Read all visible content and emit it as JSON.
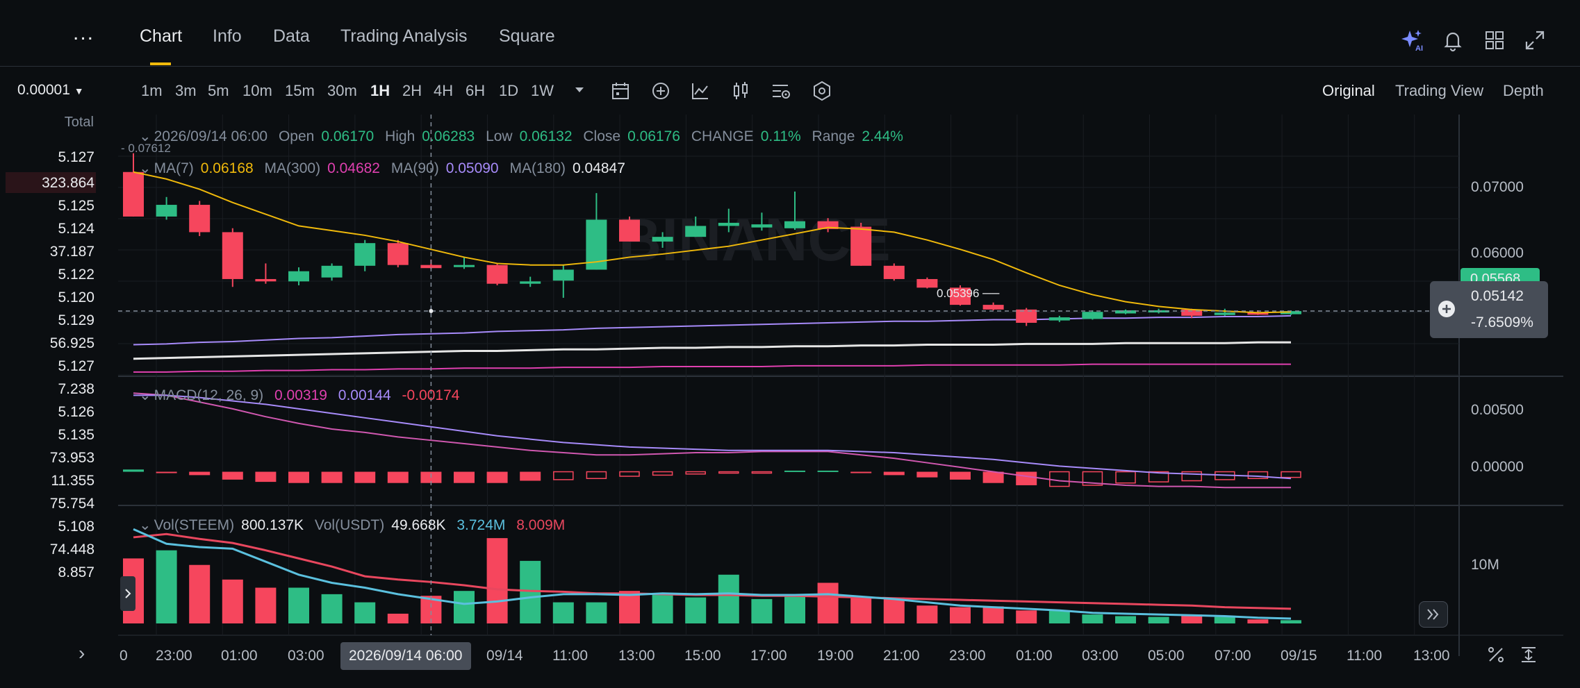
{
  "top_tabs": [
    {
      "label": "Chart",
      "active": true
    },
    {
      "label": "Info",
      "active": false
    },
    {
      "label": "Data",
      "active": false
    },
    {
      "label": "Trading Analysis",
      "active": false
    },
    {
      "label": "Square",
      "active": false
    }
  ],
  "more_label": "...",
  "top_icons": [
    "ai-sparkle-icon",
    "bell-icon",
    "layout-grid-icon",
    "expand-icon"
  ],
  "ai_badge": "AI",
  "intervals": [
    "1m",
    "3m",
    "5m",
    "10m",
    "15m",
    "30m",
    "1H",
    "2H",
    "4H",
    "6H",
    "1D",
    "1W"
  ],
  "active_interval": "1H",
  "toolbar_icons": [
    "calendar-icon",
    "add-indicator-icon",
    "indicator-chart-icon",
    "candle-type-icon",
    "settings-icon",
    "hexagon-icon"
  ],
  "view_options": [
    {
      "label": "Original",
      "active": true
    },
    {
      "label": "Trading View",
      "active": false
    },
    {
      "label": "Depth",
      "active": false
    }
  ],
  "left_panel": {
    "price_select": "0.00001",
    "total_label": "Total",
    "rows": [
      "5.127",
      "323.864",
      "5.125",
      "5.124",
      "37.187",
      "5.122",
      "5.120",
      "5.129",
      "56.925",
      "5.127",
      "7.238",
      "5.126",
      "5.135",
      "73.953",
      "11.355",
      "75.754",
      "5.108",
      "74.448",
      "8.857"
    ],
    "expand_arrow": "›"
  },
  "ohlc_legend": {
    "date": "2026/09/14 06:00",
    "open_label": "Open",
    "open": "0.06170",
    "high_label": "High",
    "high": "0.06283",
    "low_label": "Low",
    "low": "0.06132",
    "close_label": "Close",
    "close": "0.06176",
    "change_label": "CHANGE",
    "change": "0.11%",
    "range_label": "Range",
    "range": "2.44%"
  },
  "ma_legend": {
    "ma7_label": "MA(7)",
    "ma7": "0.06168",
    "ma300_label": "MA(300)",
    "ma300": "0.04682",
    "ma90_label": "MA(90)",
    "ma90": "0.05090",
    "ma180_label": "MA(180)",
    "ma180": "0.04847"
  },
  "macd_legend": {
    "label": "MACD(12, 26, 9)",
    "v1": "0.00319",
    "v2": "0.00144",
    "v3": "-0.00174"
  },
  "vol_legend": {
    "label1": "Vol(STEEM)",
    "v1": "800.137K",
    "label2": "Vol(USDT)",
    "v2": "49.668K",
    "v3": "3.724M",
    "v4": "8.009M"
  },
  "high_marker": "0.07612",
  "low_marker": "0.05396",
  "price_axis": [
    "0.07000",
    "0.06000"
  ],
  "macd_axis": [
    "0.00500",
    "0.00000"
  ],
  "vol_axis": [
    "10M"
  ],
  "current_price_tag": "0.05568",
  "tooltip": {
    "price": "0.05142",
    "change": "-7.6509%"
  },
  "crosshair_date": "2026/09/14 06:00",
  "time_axis": [
    "0",
    "23:00",
    "01:00",
    "03:00",
    "09/14",
    "11:00",
    "13:00",
    "15:00",
    "17:00",
    "19:00",
    "21:00",
    "23:00",
    "01:00",
    "03:00",
    "05:00",
    "07:00",
    "09/15",
    "11:00",
    "13:00"
  ],
  "watermark": "BINANCE",
  "colors": {
    "up": "#2ebd85",
    "down": "#f6465d",
    "ma7": "#f0b90b",
    "ma300": "#e040b0",
    "ma90": "#a78bfa",
    "ma180": "#e6e6e6",
    "macd": "#d058b0",
    "signal": "#a78bfa",
    "vol_ma1": "#e8475e",
    "vol_ma2": "#5bc0de"
  },
  "chart_data": {
    "type": "candlestick",
    "candles": [
      {
        "o": 0.0737,
        "h": 0.0761,
        "l": 0.068,
        "c": 0.068
      },
      {
        "o": 0.068,
        "h": 0.0705,
        "l": 0.0676,
        "c": 0.0695
      },
      {
        "o": 0.0695,
        "h": 0.07,
        "l": 0.0655,
        "c": 0.066
      },
      {
        "o": 0.066,
        "h": 0.0665,
        "l": 0.059,
        "c": 0.06
      },
      {
        "o": 0.06,
        "h": 0.062,
        "l": 0.0594,
        "c": 0.0597
      },
      {
        "o": 0.0597,
        "h": 0.0615,
        "l": 0.0592,
        "c": 0.061
      },
      {
        "o": 0.0602,
        "h": 0.062,
        "l": 0.0598,
        "c": 0.0617
      },
      {
        "o": 0.0617,
        "h": 0.065,
        "l": 0.061,
        "c": 0.0646
      },
      {
        "o": 0.0646,
        "h": 0.065,
        "l": 0.0615,
        "c": 0.0618
      },
      {
        "o": 0.0618,
        "h": 0.0625,
        "l": 0.0613,
        "c": 0.0614
      },
      {
        "o": 0.0617,
        "h": 0.0628,
        "l": 0.0613,
        "c": 0.0618
      },
      {
        "o": 0.0618,
        "h": 0.062,
        "l": 0.0592,
        "c": 0.0594
      },
      {
        "o": 0.0594,
        "h": 0.0603,
        "l": 0.059,
        "c": 0.0597
      },
      {
        "o": 0.0598,
        "h": 0.0618,
        "l": 0.0576,
        "c": 0.0612
      },
      {
        "o": 0.0612,
        "h": 0.071,
        "l": 0.0612,
        "c": 0.0676
      },
      {
        "o": 0.0676,
        "h": 0.068,
        "l": 0.0648,
        "c": 0.0648
      },
      {
        "o": 0.0648,
        "h": 0.066,
        "l": 0.064,
        "c": 0.0654
      },
      {
        "o": 0.0654,
        "h": 0.068,
        "l": 0.0654,
        "c": 0.0668
      },
      {
        "o": 0.0668,
        "h": 0.069,
        "l": 0.066,
        "c": 0.0672
      },
      {
        "o": 0.0666,
        "h": 0.0685,
        "l": 0.0662,
        "c": 0.067
      },
      {
        "o": 0.0665,
        "h": 0.0712,
        "l": 0.0663,
        "c": 0.0674
      },
      {
        "o": 0.0674,
        "h": 0.0678,
        "l": 0.066,
        "c": 0.0664
      },
      {
        "o": 0.0667,
        "h": 0.0672,
        "l": 0.0617,
        "c": 0.0617
      },
      {
        "o": 0.0617,
        "h": 0.062,
        "l": 0.0598,
        "c": 0.06
      },
      {
        "o": 0.06,
        "h": 0.0602,
        "l": 0.0588,
        "c": 0.0589
      },
      {
        "o": 0.0589,
        "h": 0.0592,
        "l": 0.0566,
        "c": 0.0567
      },
      {
        "o": 0.0567,
        "h": 0.057,
        "l": 0.056,
        "c": 0.0561
      },
      {
        "o": 0.0561,
        "h": 0.0563,
        "l": 0.054,
        "c": 0.0544
      },
      {
        "o": 0.0547,
        "h": 0.0553,
        "l": 0.0545,
        "c": 0.0551
      },
      {
        "o": 0.0549,
        "h": 0.056,
        "l": 0.0548,
        "c": 0.0558
      },
      {
        "o": 0.0556,
        "h": 0.0561,
        "l": 0.0555,
        "c": 0.056
      },
      {
        "o": 0.0558,
        "h": 0.0562,
        "l": 0.0556,
        "c": 0.056
      },
      {
        "o": 0.0561,
        "h": 0.0562,
        "l": 0.055,
        "c": 0.0553
      },
      {
        "o": 0.0554,
        "h": 0.0562,
        "l": 0.0553,
        "c": 0.0557
      },
      {
        "o": 0.0557,
        "h": 0.056,
        "l": 0.0554,
        "c": 0.0555
      },
      {
        "o": 0.0555,
        "h": 0.056,
        "l": 0.0554,
        "c": 0.0559
      }
    ],
    "ma7": [
      0.0737,
      0.0728,
      0.0715,
      0.0698,
      0.0683,
      0.0668,
      0.0662,
      0.0656,
      0.0648,
      0.0638,
      0.0628,
      0.062,
      0.0618,
      0.0618,
      0.0622,
      0.0628,
      0.0632,
      0.0637,
      0.0642,
      0.065,
      0.0658,
      0.0666,
      0.0664,
      0.066,
      0.065,
      0.0638,
      0.0625,
      0.0608,
      0.0592,
      0.058,
      0.0571,
      0.0565,
      0.0561,
      0.0559,
      0.0557,
      0.0558
    ],
    "ma90": [
      0.0516,
      0.0517,
      0.0519,
      0.052,
      0.0522,
      0.0524,
      0.0525,
      0.0527,
      0.0529,
      0.053,
      0.0531,
      0.0533,
      0.0534,
      0.0535,
      0.0537,
      0.0538,
      0.0539,
      0.054,
      0.0541,
      0.0542,
      0.0543,
      0.0544,
      0.0545,
      0.0546,
      0.0546,
      0.0547,
      0.0548,
      0.0548,
      0.0549,
      0.055,
      0.055,
      0.0551,
      0.0551,
      0.0552,
      0.0552,
      0.0553
    ],
    "ma180": [
      0.0498,
      0.0499,
      0.05,
      0.0501,
      0.0502,
      0.0503,
      0.0504,
      0.0505,
      0.0506,
      0.0507,
      0.0508,
      0.0508,
      0.0509,
      0.051,
      0.051,
      0.0511,
      0.0512,
      0.0512,
      0.0513,
      0.0513,
      0.0514,
      0.0514,
      0.0515,
      0.0515,
      0.0516,
      0.0516,
      0.0516,
      0.0517,
      0.0517,
      0.0517,
      0.0518,
      0.0518,
      0.0518,
      0.0518,
      0.0519,
      0.0519
    ],
    "ma300": [
      0.0481,
      0.0481,
      0.0482,
      0.0482,
      0.0483,
      0.0483,
      0.0484,
      0.0484,
      0.0485,
      0.0485,
      0.0486,
      0.0486,
      0.0486,
      0.0487,
      0.0487,
      0.0487,
      0.0488,
      0.0488,
      0.0488,
      0.0488,
      0.0489,
      0.0489,
      0.0489,
      0.0489,
      0.049,
      0.049,
      0.049,
      0.049,
      0.049,
      0.0491,
      0.0491,
      0.0491,
      0.0491,
      0.0491,
      0.0491,
      0.0491
    ],
    "price_range": [
      0.048,
      0.0775
    ],
    "macd_hist": [
      0.0002,
      -0.0001,
      -0.0003,
      -0.0007,
      -0.0009,
      -0.001,
      -0.001,
      -0.001,
      -0.001,
      -0.001,
      -0.001,
      -0.001,
      -0.0008,
      -0.0007,
      -0.0006,
      -0.0004,
      -0.0003,
      -0.0002,
      -0.0001,
      -0.0001,
      0.0001,
      0.0001,
      -0.0001,
      -0.0003,
      -0.0005,
      -0.0007,
      -0.001,
      -0.0012,
      -0.0013,
      -0.0012,
      -0.001,
      -0.0009,
      -0.0008,
      -0.0007,
      -0.0006,
      -0.0005
    ],
    "macd_line": [
      0.007,
      0.0068,
      0.0062,
      0.0056,
      0.0049,
      0.0043,
      0.0038,
      0.0035,
      0.0031,
      0.0028,
      0.0025,
      0.0022,
      0.0019,
      0.0017,
      0.0015,
      0.0015,
      0.0016,
      0.0017,
      0.0017,
      0.0018,
      0.0018,
      0.0018,
      0.0015,
      0.0012,
      0.0008,
      0.0004,
      0.0,
      -0.0004,
      -0.0008,
      -0.001,
      -0.0012,
      -0.0013,
      -0.0013,
      -0.0014,
      -0.0014,
      -0.0014
    ],
    "signal_line": [
      0.0068,
      0.0068,
      0.0066,
      0.0063,
      0.006,
      0.0056,
      0.0052,
      0.0048,
      0.0044,
      0.004,
      0.0036,
      0.0032,
      0.0029,
      0.0026,
      0.0024,
      0.0022,
      0.0021,
      0.002,
      0.0019,
      0.0019,
      0.0019,
      0.0019,
      0.0018,
      0.0017,
      0.0015,
      0.0013,
      0.0011,
      0.0008,
      0.0005,
      0.0003,
      0.0001,
      -0.0001,
      -0.0002,
      -0.0003,
      -0.0004,
      -0.0006
    ],
    "macd_range": [
      -0.0025,
      0.008
    ],
    "volume": [
      8.0,
      9.0,
      7.2,
      5.4,
      4.4,
      4.4,
      3.6,
      2.6,
      1.2,
      3.4,
      4.0,
      10.5,
      7.7,
      2.6,
      2.6,
      4.0,
      3.5,
      3.2,
      6.0,
      3.0,
      3.4,
      5.0,
      3.2,
      3.2,
      2.2,
      2.0,
      2.1,
      1.6,
      1.6,
      1.1,
      0.9,
      0.8,
      1.1,
      0.8,
      0.5,
      0.4
    ],
    "vol_ma1": [
      10.6,
      11.0,
      10.4,
      9.9,
      9.0,
      8.0,
      7.0,
      5.8,
      5.4,
      5.1,
      4.7,
      4.2,
      4.0,
      3.9,
      3.7,
      3.7,
      3.6,
      3.5,
      3.5,
      3.4,
      3.4,
      3.3,
      3.2,
      3.1,
      3.0,
      2.9,
      2.8,
      2.7,
      2.6,
      2.5,
      2.4,
      2.3,
      2.2,
      2.0,
      1.9,
      1.8
    ],
    "vol_ma2": [
      11.6,
      9.8,
      9.4,
      9.2,
      7.6,
      6.0,
      5.0,
      4.4,
      3.6,
      3.0,
      2.4,
      2.7,
      3.2,
      3.6,
      3.6,
      3.5,
      3.7,
      3.6,
      3.7,
      3.5,
      3.5,
      3.6,
      3.3,
      3.0,
      2.6,
      2.2,
      2.0,
      1.8,
      1.6,
      1.3,
      1.2,
      1.1,
      1.0,
      0.9,
      0.7,
      0.6
    ],
    "vol_range": [
      0,
      13.5
    ]
  }
}
